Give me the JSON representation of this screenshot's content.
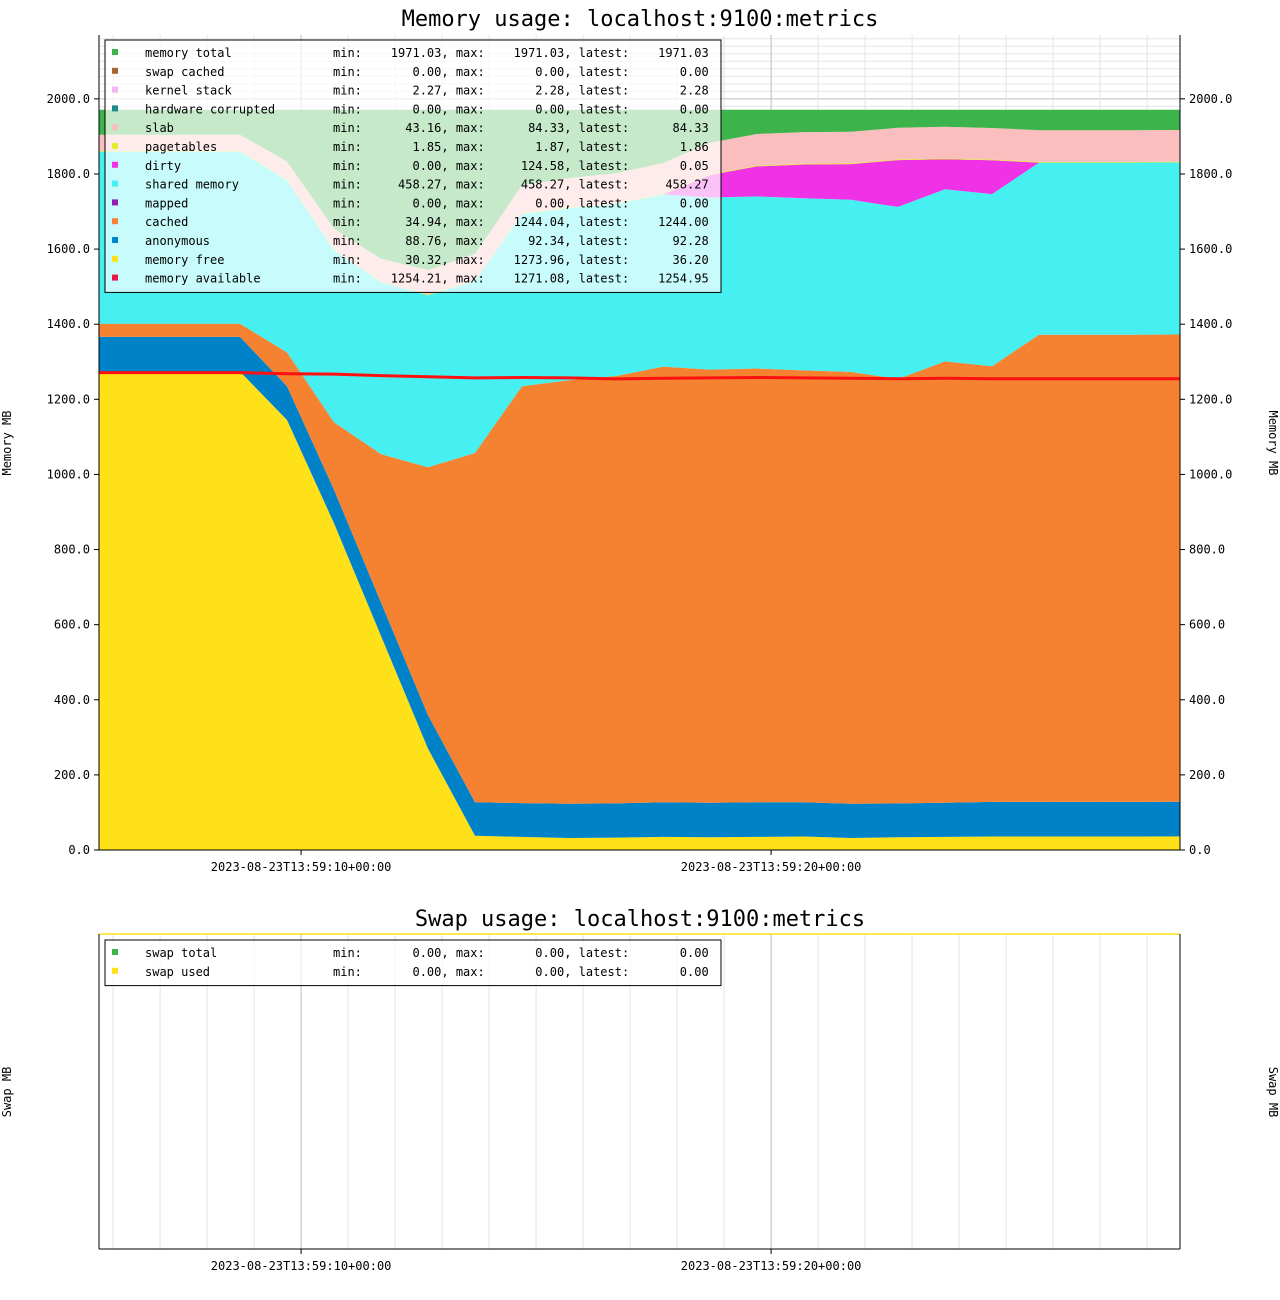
{
  "chart_data": [
    {
      "type": "area",
      "title": "Memory usage: localhost:9100:metrics",
      "ylabel": "Memory MB",
      "ylabel_right": "Memory MB",
      "ylim": [
        0,
        2170
      ],
      "yticks": [
        "0.0",
        "200.0",
        "400.0",
        "600.0",
        "800.0",
        "1000.0",
        "1200.0",
        "1400.0",
        "1600.0",
        "1800.0",
        "2000.0"
      ],
      "xlim": [
        0,
        23
      ],
      "xtick_labels": [
        {
          "x": 4.3,
          "label": "2023-08-23T13:59:10+00:00"
        },
        {
          "x": 14.3,
          "label": "2023-08-23T13:59:20+00:00"
        }
      ],
      "x": [
        0,
        3,
        4,
        5,
        6,
        7,
        8,
        9,
        10,
        11,
        12,
        13,
        14,
        15,
        16,
        17,
        18,
        19,
        20,
        21,
        22,
        23
      ],
      "legend_position": "top-left",
      "stack_order": [
        "memory free",
        "anonymous",
        "cached",
        "shared memory",
        "dirty",
        "pagetables",
        "slab",
        "memory total"
      ],
      "series": [
        {
          "name": "memory total",
          "color": "#3cb44b",
          "stat": "min:    1971.03, max:    1971.03, latest:    1971.03",
          "values": [
            1971.03,
            1971.03,
            1971.03,
            1971.03,
            1971.03,
            1971.03,
            1971.03,
            1971.03,
            1971.03,
            1971.03,
            1971.03,
            1971.03,
            1971.03,
            1971.03,
            1971.03,
            1971.03,
            1971.03,
            1971.03,
            1971.03,
            1971.03,
            1971.03,
            1971.03
          ]
        },
        {
          "name": "swap cached",
          "color": "#a8642a",
          "stat": "min:       0.00, max:       0.00, latest:       0.00"
        },
        {
          "name": "kernel stack",
          "color": "#f0b8f0",
          "stat": "min:       2.27, max:       2.28, latest:       2.28"
        },
        {
          "name": "hardware corrupted",
          "color": "#1a8a8a",
          "stat": "min:       0.00, max:       0.00, latest:       0.00"
        },
        {
          "name": "slab",
          "color": "#fabebe",
          "stat": "min:      43.16, max:      84.33, latest:      84.33",
          "values": [
            43.16,
            43.16,
            48,
            55,
            60,
            65,
            70,
            75,
            78,
            80,
            82,
            84,
            84.33,
            84.33,
            84.33,
            84.33,
            84.33,
            84.33,
            84.33,
            84.33,
            84.33,
            84.33
          ]
        },
        {
          "name": "pagetables",
          "color": "#e6ee28",
          "stat": "min:       1.85, max:       1.87, latest:       1.86",
          "values": [
            1.85,
            1.85,
            1.86,
            1.86,
            1.86,
            1.86,
            1.86,
            1.86,
            1.86,
            1.86,
            1.86,
            1.86,
            1.86,
            1.86,
            1.86,
            1.86,
            1.86,
            1.86,
            1.86,
            1.87,
            1.86,
            1.86
          ]
        },
        {
          "name": "dirty",
          "color": "#f032e6",
          "stat": "min:       0.00, max:     124.58, latest:       0.05",
          "values": [
            0,
            0,
            0,
            0,
            0,
            0,
            0,
            0,
            0,
            0,
            0,
            60,
            80,
            90,
            95,
            124.58,
            80,
            90,
            0.05,
            0.05,
            0.05,
            0.05
          ]
        },
        {
          "name": "shared memory",
          "color": "#46f0f0",
          "stat": "min:     458.27, max:     458.27, latest:     458.27",
          "values": [
            458.27,
            458.27,
            458.27,
            458.27,
            458.27,
            458.27,
            458.27,
            458.27,
            458.27,
            458.27,
            458.27,
            458.27,
            458.27,
            458.27,
            458.27,
            458.27,
            458.27,
            458.27,
            458.27,
            458.27,
            458.27,
            458.27
          ]
        },
        {
          "name": "mapped",
          "color": "#911eb4",
          "stat": "min:       0.00, max:       0.00, latest:       0.00"
        },
        {
          "name": "cached",
          "color": "#f58231",
          "stat": "min:      34.94, max:    1244.04, latest:    1244.00",
          "values": [
            34.94,
            34.94,
            90,
            180,
            395,
            660,
            930,
            1110,
            1128,
            1138,
            1160,
            1153,
            1155,
            1150,
            1150,
            1130,
            1175,
            1160,
            1244.04,
            1244,
            1244,
            1244
          ]
        },
        {
          "name": "anonymous",
          "color": "#0082c8",
          "stat": "min:      88.76, max:      92.34, latest:      92.28",
          "values": [
            92.34,
            92.34,
            90,
            89,
            89,
            89,
            89,
            90,
            91,
            91,
            92,
            92,
            92,
            91,
            91,
            90,
            91,
            92,
            92,
            92,
            92,
            92.28
          ]
        },
        {
          "name": "memory free",
          "color": "#ffe119",
          "stat": "min:      30.32, max:    1273.96, latest:      36.20",
          "values": [
            1273.96,
            1273.96,
            1145,
            870,
            570,
            270,
            38,
            35,
            32,
            33,
            35,
            34,
            35,
            36,
            32,
            34,
            35,
            36,
            36,
            36,
            36,
            36.2
          ]
        },
        {
          "name": "memory available",
          "color": "#e6194b",
          "line_color": "#ff1010",
          "stat": "min:    1254.21, max:    1271.08, latest:    1254.95",
          "values": [
            1271.08,
            1271.08,
            1268,
            1267,
            1263,
            1260,
            1257,
            1258,
            1257,
            1254.21,
            1256,
            1257,
            1258,
            1257,
            1256,
            1255,
            1256,
            1255,
            1255,
            1255,
            1255,
            1254.95
          ]
        }
      ]
    },
    {
      "type": "area",
      "title": "Swap usage: localhost:9100:metrics",
      "ylabel": "Swap MB",
      "ylabel_right": "Swap MB",
      "xlim": [
        0,
        23
      ],
      "xtick_labels": [
        {
          "x": 4.3,
          "label": "2023-08-23T13:59:10+00:00"
        },
        {
          "x": 14.3,
          "label": "2023-08-23T13:59:20+00:00"
        }
      ],
      "legend_position": "top-left",
      "series": [
        {
          "name": "swap total",
          "color": "#3cb44b",
          "stat": "min:       0.00, max:       0.00, latest:       0.00"
        },
        {
          "name": "swap used",
          "color": "#ffe119",
          "stat": "min:       0.00, max:       0.00, latest:       0.00"
        }
      ]
    }
  ]
}
